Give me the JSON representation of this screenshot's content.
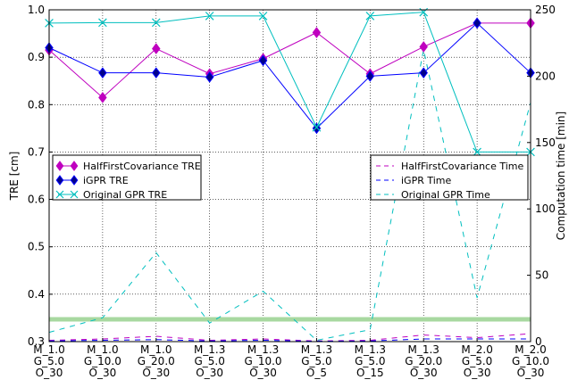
{
  "chart_data": {
    "type": "line",
    "categories": [
      [
        "M_1.0",
        "G_5.0",
        "O_30"
      ],
      [
        "M_1.0",
        "G_10.0",
        "O_30"
      ],
      [
        "M_1.0",
        "G_20.0",
        "O_30"
      ],
      [
        "M_1.3",
        "G_5.0",
        "O_30"
      ],
      [
        "M_1.3",
        "G_10.0",
        "O_30"
      ],
      [
        "M_1.3",
        "G_5.0",
        "O_5"
      ],
      [
        "M_1.3",
        "G_5.0",
        "O_15"
      ],
      [
        "M_1.3",
        "G_20.0",
        "O_30"
      ],
      [
        "M_2.0",
        "G_5.0",
        "O_30"
      ],
      [
        "M_2.0",
        "G_10.0",
        "O_30"
      ]
    ],
    "ylabel": "TRE [cm]",
    "ylim": [
      0.3,
      1.0
    ],
    "yticks": [
      "0.3",
      "0.4",
      "0.5",
      "0.6",
      "0.7",
      "0.8",
      "0.9",
      "1.0"
    ],
    "y2label": "Computation time [min]",
    "y2lim": [
      0,
      250
    ],
    "y2ticks": [
      "0",
      "50",
      "100",
      "150",
      "200",
      "250"
    ],
    "grid": true,
    "series": [
      {
        "name": "HalfFirstCovariance TRE",
        "axis": "left",
        "color": "#bf00bf",
        "marker": "diamond",
        "markerFill": "#bf00bf",
        "style": "solid",
        "values": [
          0.915,
          0.815,
          0.918,
          0.865,
          0.897,
          0.952,
          0.865,
          0.922,
          0.972,
          0.972
        ]
      },
      {
        "name": "iGPR TRE",
        "axis": "left",
        "color": "#0000ff",
        "marker": "diamond",
        "markerFill": "#00008b",
        "style": "solid",
        "values": [
          0.92,
          0.867,
          0.867,
          0.858,
          0.893,
          0.75,
          0.86,
          0.867,
          0.972,
          0.867
        ]
      },
      {
        "name": "Original GPR TRE",
        "axis": "left",
        "color": "#00bfbf",
        "marker": "x",
        "style": "solid",
        "values": [
          0.972,
          0.973,
          0.973,
          0.987,
          0.987,
          0.752,
          0.987,
          0.995,
          0.7,
          0.7
        ]
      },
      {
        "name": "HalfFirstCovariance Time",
        "axis": "right",
        "color": "#bf00bf",
        "marker": "none",
        "style": "dashed",
        "values": [
          1,
          2,
          4,
          1,
          2,
          0.5,
          1,
          5,
          3,
          6
        ]
      },
      {
        "name": "iGPR Time",
        "axis": "right",
        "color": "#0000ff",
        "marker": "none",
        "style": "dashed",
        "values": [
          0.5,
          1,
          1.5,
          0.5,
          1,
          0.3,
          0.5,
          2,
          2,
          2
        ]
      },
      {
        "name": "Original GPR Time",
        "axis": "right",
        "color": "#00bfbf",
        "marker": "none",
        "style": "dashed",
        "values": [
          7,
          18,
          67,
          14,
          38,
          1,
          9,
          220,
          33,
          180
        ]
      }
    ],
    "reference_line": {
      "axis": "left",
      "value": 0.347,
      "color": "#a8d8a0"
    },
    "legends": [
      {
        "position": "left-middle",
        "entries": [
          0,
          1,
          2
        ]
      },
      {
        "position": "right-middle",
        "entries": [
          3,
          4,
          5
        ]
      }
    ]
  }
}
